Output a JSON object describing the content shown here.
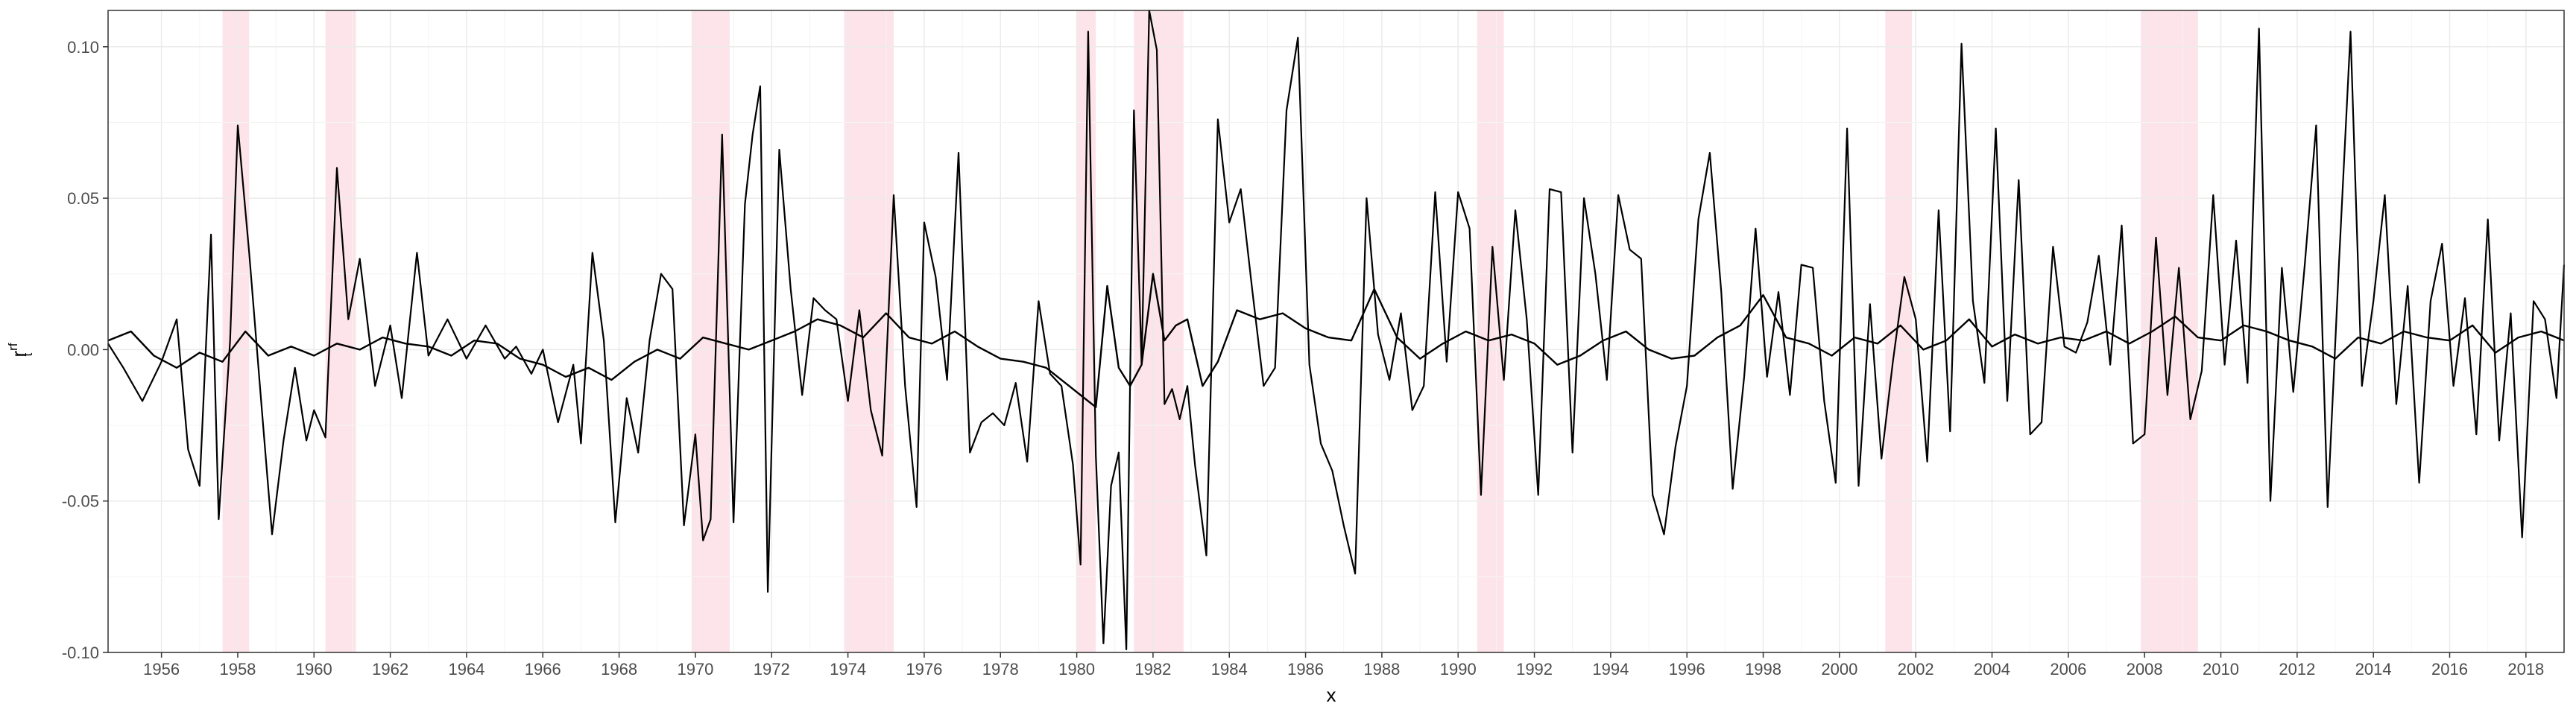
{
  "chart_data": {
    "type": "line",
    "title": "",
    "xlabel": "x",
    "ylabel": "r",
    "ylabel_superscript": "rf",
    "ylabel_subscript": "t",
    "xlim": [
      1954.6,
      2019.0
    ],
    "ylim": [
      -0.1,
      0.112
    ],
    "grid": true,
    "legend": "none",
    "colors": {
      "line": "#000000",
      "recession": "#fde4ea",
      "grid": "#ebebeb",
      "border": "#333333"
    },
    "x_ticks": [
      {
        "value": 1956,
        "label": "1956"
      },
      {
        "value": 1958,
        "label": "1958"
      },
      {
        "value": 1960,
        "label": "1960"
      },
      {
        "value": 1962,
        "label": "1962"
      },
      {
        "value": 1964,
        "label": "1964"
      },
      {
        "value": 1966,
        "label": "1966"
      },
      {
        "value": 1968,
        "label": "1968"
      },
      {
        "value": 1970,
        "label": "1970"
      },
      {
        "value": 1972,
        "label": "1972"
      },
      {
        "value": 1974,
        "label": "1974"
      },
      {
        "value": 1976,
        "label": "1976"
      },
      {
        "value": 1978,
        "label": "1978"
      },
      {
        "value": 1980,
        "label": "1980"
      },
      {
        "value": 1982,
        "label": "1982"
      },
      {
        "value": 1984,
        "label": "1984"
      },
      {
        "value": 1986,
        "label": "1986"
      },
      {
        "value": 1988,
        "label": "1988"
      },
      {
        "value": 1990,
        "label": "1990"
      },
      {
        "value": 1992,
        "label": "1992"
      },
      {
        "value": 1994,
        "label": "1994"
      },
      {
        "value": 1996,
        "label": "1996"
      },
      {
        "value": 1998,
        "label": "1998"
      },
      {
        "value": 2000,
        "label": "2000"
      },
      {
        "value": 2002,
        "label": "2002"
      },
      {
        "value": 2004,
        "label": "2004"
      },
      {
        "value": 2006,
        "label": "2006"
      },
      {
        "value": 2008,
        "label": "2008"
      },
      {
        "value": 2010,
        "label": "2010"
      },
      {
        "value": 2012,
        "label": "2012"
      },
      {
        "value": 2014,
        "label": "2014"
      },
      {
        "value": 2016,
        "label": "2016"
      },
      {
        "value": 2018,
        "label": "2018"
      }
    ],
    "y_ticks": [
      {
        "value": -0.1,
        "label": "-0.10"
      },
      {
        "value": -0.05,
        "label": "-0.05"
      },
      {
        "value": 0.0,
        "label": "0.00"
      },
      {
        "value": 0.05,
        "label": "0.05"
      },
      {
        "value": 0.1,
        "label": "0.10"
      }
    ],
    "recessions": [
      [
        1957.6,
        1958.3
      ],
      [
        1960.3,
        1961.1
      ],
      [
        1969.9,
        1970.9
      ],
      [
        1973.9,
        1975.2
      ],
      [
        1980.0,
        1980.5
      ],
      [
        1981.5,
        1982.8
      ],
      [
        1990.5,
        1991.2
      ],
      [
        2001.2,
        2001.9
      ],
      [
        2007.9,
        2009.4
      ]
    ],
    "series": [
      {
        "style": "volatile",
        "x": [
          1954.6,
          1955.0,
          1955.5,
          1956.0,
          1956.4,
          1956.7,
          1957.0,
          1957.3,
          1957.5,
          1957.8,
          1958.0,
          1958.3,
          1958.6,
          1958.9,
          1959.2,
          1959.5,
          1959.8,
          1960.0,
          1960.3,
          1960.6,
          1960.9,
          1961.2,
          1961.6,
          1962.0,
          1962.3,
          1962.7,
          1963.0,
          1963.5,
          1964.0,
          1964.5,
          1965.0,
          1965.3,
          1965.7,
          1966.0,
          1966.4,
          1966.8,
          1967.0,
          1967.3,
          1967.6,
          1967.9,
          1968.2,
          1968.5,
          1968.8,
          1969.1,
          1969.4,
          1969.7,
          1970.0,
          1970.2,
          1970.4,
          1970.7,
          1971.0,
          1971.3,
          1971.5,
          1971.7,
          1971.9,
          1972.2,
          1972.5,
          1972.8,
          1973.1,
          1973.4,
          1973.7,
          1974.0,
          1974.3,
          1974.6,
          1974.9,
          1975.2,
          1975.5,
          1975.8,
          1976.0,
          1976.3,
          1976.6,
          1976.9,
          1977.2,
          1977.5,
          1977.8,
          1978.1,
          1978.4,
          1978.7,
          1979.0,
          1979.3,
          1979.6,
          1979.9,
          1980.1,
          1980.3,
          1980.5,
          1980.7,
          1980.9,
          1981.1,
          1981.3,
          1981.5,
          1981.7,
          1981.9,
          1982.1,
          1982.3,
          1982.5,
          1982.7,
          1982.9,
          1983.1,
          1983.4,
          1983.7,
          1984.0,
          1984.3,
          1984.6,
          1984.9,
          1985.2,
          1985.5,
          1985.8,
          1986.1,
          1986.4,
          1986.7,
          1987.0,
          1987.3,
          1987.6,
          1987.9,
          1988.2,
          1988.5,
          1988.8,
          1989.1,
          1989.4,
          1989.7,
          1990.0,
          1990.3,
          1990.6,
          1990.9,
          1991.2,
          1991.5,
          1991.8,
          1992.1,
          1992.4,
          1992.7,
          1993.0,
          1993.3,
          1993.6,
          1993.9,
          1994.2,
          1994.5,
          1994.8,
          1995.1,
          1995.4,
          1995.7,
          1996.0,
          1996.3,
          1996.6,
          1996.9,
          1997.2,
          1997.5,
          1997.8,
          1998.1,
          1998.4,
          1998.7,
          1999.0,
          1999.3,
          1999.6,
          1999.9,
          2000.2,
          2000.5,
          2000.8,
          2001.1,
          2001.4,
          2001.7,
          2002.0,
          2002.3,
          2002.6,
          2002.9,
          2003.2,
          2003.5,
          2003.8,
          2004.1,
          2004.4,
          2004.7,
          2005.0,
          2005.3,
          2005.6,
          2005.9,
          2006.2,
          2006.5,
          2006.8,
          2007.1,
          2007.4,
          2007.7,
          2008.0,
          2008.3,
          2008.6,
          2008.9,
          2009.2,
          2009.5,
          2009.8,
          2010.1,
          2010.4,
          2010.7,
          2011.0,
          2011.3,
          2011.6,
          2011.9,
          2012.2,
          2012.5,
          2012.8,
          2013.1,
          2013.4,
          2013.7,
          2014.0,
          2014.3,
          2014.6,
          2014.9,
          2015.2,
          2015.5,
          2015.8,
          2016.1,
          2016.4,
          2016.7,
          2017.0,
          2017.3,
          2017.6,
          2017.9,
          2018.2,
          2018.5,
          2018.8,
          2019.0
        ],
        "y": [
          0.002,
          -0.006,
          -0.017,
          -0.004,
          0.01,
          -0.033,
          -0.045,
          0.038,
          -0.056,
          0.003,
          0.074,
          0.032,
          -0.015,
          -0.061,
          -0.03,
          -0.006,
          -0.03,
          -0.02,
          -0.029,
          0.06,
          0.01,
          0.03,
          -0.012,
          0.008,
          -0.016,
          0.032,
          -0.002,
          0.01,
          -0.003,
          0.008,
          -0.003,
          0.001,
          -0.008,
          0.0,
          -0.024,
          -0.005,
          -0.031,
          0.032,
          0.003,
          -0.057,
          -0.016,
          -0.034,
          0.003,
          0.025,
          0.02,
          -0.058,
          -0.028,
          -0.063,
          -0.056,
          0.071,
          -0.057,
          0.048,
          0.071,
          0.087,
          -0.08,
          0.066,
          0.02,
          -0.015,
          0.017,
          0.013,
          0.01,
          -0.017,
          0.013,
          -0.02,
          -0.035,
          0.051,
          -0.012,
          -0.052,
          0.042,
          0.024,
          -0.01,
          0.065,
          -0.034,
          -0.024,
          -0.021,
          -0.025,
          -0.011,
          -0.037,
          0.016,
          -0.008,
          -0.012,
          -0.038,
          -0.071,
          0.105,
          -0.035,
          -0.097,
          -0.045,
          -0.034,
          -0.099,
          0.079,
          -0.005,
          0.114,
          0.099,
          -0.018,
          -0.013,
          -0.023,
          -0.012,
          -0.038,
          -0.068,
          0.076,
          0.042,
          0.053,
          0.02,
          -0.012,
          -0.006,
          0.079,
          0.103,
          -0.005,
          -0.031,
          -0.04,
          -0.058,
          -0.074,
          0.05,
          0.005,
          -0.01,
          0.012,
          -0.02,
          -0.012,
          0.052,
          -0.004,
          0.052,
          0.04,
          -0.048,
          0.034,
          -0.01,
          0.046,
          0.01,
          -0.048,
          0.053,
          0.052,
          -0.034,
          0.05,
          0.025,
          -0.01,
          0.051,
          0.033,
          0.03,
          -0.048,
          -0.061,
          -0.032,
          -0.012,
          0.043,
          0.065,
          0.019,
          -0.046,
          -0.009,
          0.04,
          -0.009,
          0.019,
          -0.015,
          0.028,
          0.027,
          -0.017,
          -0.044,
          0.073,
          -0.045,
          0.015,
          -0.036,
          -0.004,
          0.024,
          0.01,
          -0.037,
          0.046,
          -0.027,
          0.101,
          0.016,
          -0.011,
          0.073,
          -0.017,
          0.056,
          -0.028,
          -0.024,
          0.034,
          0.001,
          -0.001,
          0.009,
          0.031,
          -0.005,
          0.041,
          -0.031,
          -0.028,
          0.037,
          -0.015,
          0.027,
          -0.023,
          -0.007,
          0.051,
          -0.005,
          0.036,
          -0.011,
          0.106,
          -0.05,
          0.027,
          -0.014,
          0.028,
          0.074,
          -0.052,
          0.029,
          0.105,
          -0.012,
          0.016,
          0.051,
          -0.018,
          0.021,
          -0.044,
          0.016,
          0.035,
          -0.012,
          0.017,
          -0.028,
          0.043,
          -0.03,
          0.012,
          -0.062,
          0.016,
          0.01,
          -0.016,
          0.028
        ]
      },
      {
        "style": "smooth",
        "x": [
          1954.6,
          1955.2,
          1955.8,
          1956.4,
          1957.0,
          1957.6,
          1958.2,
          1958.8,
          1959.4,
          1960.0,
          1960.6,
          1961.2,
          1961.8,
          1962.4,
          1963.0,
          1963.6,
          1964.2,
          1964.8,
          1965.4,
          1966.0,
          1966.6,
          1967.2,
          1967.8,
          1968.4,
          1969.0,
          1969.6,
          1970.2,
          1970.8,
          1971.4,
          1972.0,
          1972.6,
          1973.2,
          1973.8,
          1974.4,
          1975.0,
          1975.6,
          1976.2,
          1976.8,
          1977.4,
          1978.0,
          1978.6,
          1979.2,
          1979.8,
          1980.2,
          1980.5,
          1980.8,
          1981.1,
          1981.4,
          1981.7,
          1982.0,
          1982.3,
          1982.6,
          1982.9,
          1983.3,
          1983.7,
          1984.2,
          1984.8,
          1985.4,
          1986.0,
          1986.6,
          1987.2,
          1987.8,
          1988.4,
          1989.0,
          1989.6,
          1990.2,
          1990.8,
          1991.4,
          1992.0,
          1992.6,
          1993.2,
          1993.8,
          1994.4,
          1995.0,
          1995.6,
          1996.2,
          1996.8,
          1997.4,
          1998.0,
          1998.6,
          1999.2,
          1999.8,
          2000.4,
          2001.0,
          2001.6,
          2002.2,
          2002.8,
          2003.4,
          2004.0,
          2004.6,
          2005.2,
          2005.8,
          2006.4,
          2007.0,
          2007.6,
          2008.2,
          2008.8,
          2009.4,
          2010.0,
          2010.6,
          2011.2,
          2011.8,
          2012.4,
          2013.0,
          2013.6,
          2014.2,
          2014.8,
          2015.4,
          2016.0,
          2016.6,
          2017.2,
          2017.8,
          2018.4,
          2019.0
        ],
        "y": [
          0.003,
          0.006,
          -0.002,
          -0.006,
          -0.001,
          -0.004,
          0.006,
          -0.002,
          0.001,
          -0.002,
          0.002,
          0.0,
          0.004,
          0.002,
          0.001,
          -0.002,
          0.003,
          0.002,
          -0.003,
          -0.005,
          -0.009,
          -0.006,
          -0.01,
          -0.004,
          0.0,
          -0.003,
          0.004,
          0.002,
          0.0,
          0.003,
          0.006,
          0.01,
          0.008,
          0.004,
          0.012,
          0.004,
          0.002,
          0.006,
          0.001,
          -0.003,
          -0.004,
          -0.006,
          -0.012,
          -0.016,
          -0.019,
          0.021,
          -0.006,
          -0.012,
          -0.005,
          0.025,
          0.003,
          0.008,
          0.01,
          -0.012,
          -0.004,
          0.013,
          0.01,
          0.012,
          0.007,
          0.004,
          0.003,
          0.02,
          0.004,
          -0.003,
          0.002,
          0.006,
          0.003,
          0.005,
          0.002,
          -0.005,
          -0.002,
          0.003,
          0.006,
          0.0,
          -0.003,
          -0.002,
          0.004,
          0.008,
          0.018,
          0.004,
          0.002,
          -0.002,
          0.004,
          0.002,
          0.008,
          0.0,
          0.003,
          0.01,
          0.001,
          0.005,
          0.002,
          0.004,
          0.003,
          0.006,
          0.002,
          0.006,
          0.011,
          0.004,
          0.003,
          0.008,
          0.006,
          0.003,
          0.001,
          -0.003,
          0.004,
          0.002,
          0.006,
          0.004,
          0.003,
          0.008,
          -0.001,
          0.004,
          0.006,
          0.003
        ]
      }
    ]
  }
}
